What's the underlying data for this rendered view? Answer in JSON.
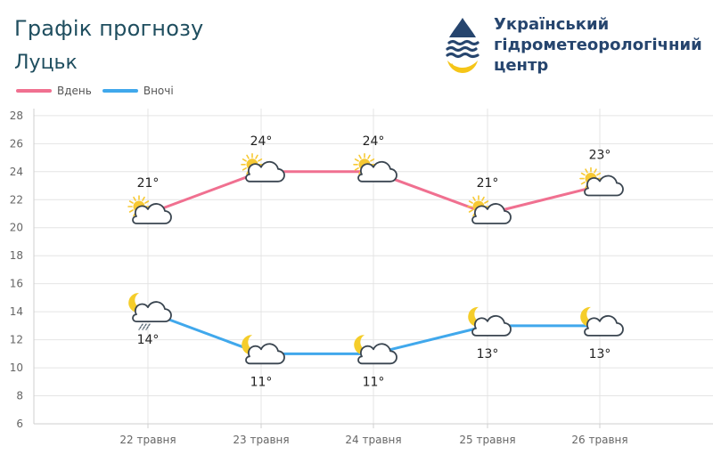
{
  "header": {
    "title": "Графік прогнозу",
    "city": "Луцьк"
  },
  "org": {
    "line1": "Український",
    "line2": "гідрометеорологічний",
    "line3": "центр"
  },
  "colors": {
    "day": "#f07090",
    "night": "#40a8ec",
    "grid": "#e4e4e4",
    "sun": "#f7c934",
    "moon": "#f5cd2a"
  },
  "chart_data": {
    "type": "line",
    "categories": [
      "22 травня",
      "23 травня",
      "24 травня",
      "25 травня",
      "26 травня"
    ],
    "series": [
      {
        "name": "Вдень",
        "values": [
          21,
          24,
          24,
          21,
          23
        ],
        "labels": [
          "21°",
          "24°",
          "24°",
          "21°",
          "23°"
        ],
        "icons": [
          "sun-cloud",
          "sun-cloud",
          "sun-cloud",
          "sun-cloud",
          "sun-cloud"
        ]
      },
      {
        "name": "Вночі",
        "values": [
          14,
          11,
          11,
          13,
          13
        ],
        "labels": [
          "14°",
          "11°",
          "11°",
          "13°",
          "13°"
        ],
        "icons": [
          "moon-cloud-rain",
          "moon-cloud",
          "moon-cloud",
          "moon-cloud",
          "moon-cloud"
        ]
      }
    ],
    "yticks": [
      "6",
      "8",
      "10",
      "12",
      "14",
      "16",
      "18",
      "20",
      "22",
      "24",
      "26",
      "28"
    ],
    "ylim": [
      6,
      28.5
    ],
    "grid": true,
    "legend": "top-left"
  }
}
